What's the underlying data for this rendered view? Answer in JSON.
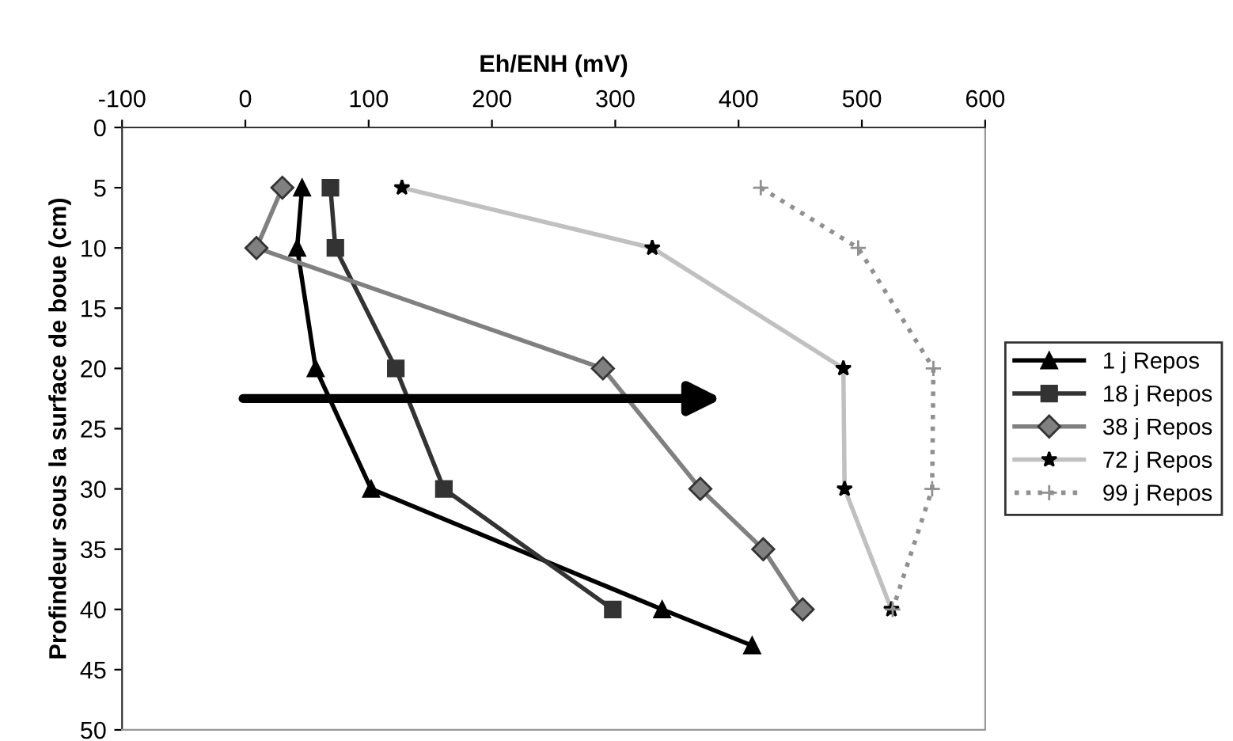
{
  "chart_data": {
    "type": "line",
    "xlabel": "Eh/ENH (mV)",
    "ylabel": "Profindeur sous la surface de boue (cm)",
    "xlim": [
      -100,
      600
    ],
    "xticks": [
      -100,
      0,
      100,
      200,
      300,
      400,
      500,
      600
    ],
    "ylim": [
      50,
      0
    ],
    "yticks": [
      0,
      5,
      10,
      15,
      20,
      25,
      30,
      35,
      40,
      45,
      50
    ],
    "grid": false,
    "legend": "right",
    "series": [
      {
        "name": "1 j Repos",
        "color": "#000000",
        "marker": "triangle",
        "line_style": "solid",
        "x": [
          46,
          42,
          57,
          102,
          338,
          411
        ],
        "values": [
          5,
          10,
          20,
          30,
          40,
          43
        ]
      },
      {
        "name": "18 j Repos",
        "color": "#333333",
        "marker": "square",
        "line_style": "solid",
        "x": [
          69,
          73,
          122,
          161,
          298
        ],
        "values": [
          5,
          10,
          20,
          30,
          40
        ]
      },
      {
        "name": "38 j Repos",
        "color": "#808080",
        "marker": "diamond",
        "line_style": "solid",
        "x": [
          30,
          9,
          290,
          369,
          420,
          452
        ],
        "values": [
          5,
          10,
          20,
          30,
          35,
          40
        ]
      },
      {
        "name": "72 j Repos",
        "color": "#c0c0c0",
        "marker": "star",
        "line_style": "solid",
        "x": [
          127,
          330,
          485,
          486,
          524
        ],
        "values": [
          5,
          10,
          20,
          30,
          40
        ]
      },
      {
        "name": "99 j Repos",
        "color": "#909090",
        "marker": "cross",
        "line_style": "dotted",
        "x": [
          418,
          497,
          558,
          557,
          525
        ],
        "values": [
          5,
          10,
          20,
          30,
          40
        ]
      }
    ]
  }
}
